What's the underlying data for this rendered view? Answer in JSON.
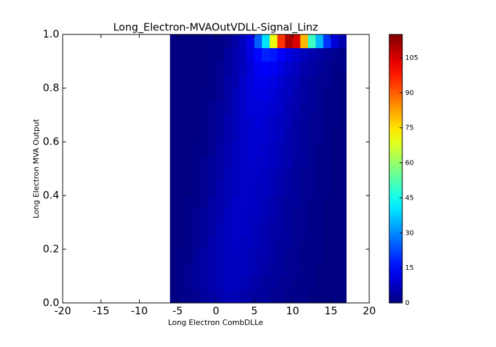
{
  "chart_data": {
    "type": "hist2d",
    "title": "Long_Electron-MVAOutVDLL-Signal_Linz",
    "x_label": "Long Electron CombDLLe",
    "y_label": "Long Electron MVA Output",
    "colormap": "jet",
    "xlim": [
      -20,
      20
    ],
    "xticks": [
      -20,
      -15,
      -10,
      -5,
      0,
      5,
      10,
      15,
      20
    ],
    "ylim": [
      0,
      1
    ],
    "yticks": [
      {
        "value": 0,
        "label": "0.0"
      },
      0.2,
      0.4,
      0.6,
      0.8,
      {
        "value": 1,
        "label": "1.0"
      }
    ],
    "zlim": [
      0,
      115
    ],
    "zticks": [
      0,
      15,
      30,
      45,
      60,
      75,
      90,
      105
    ],
    "xbins": [
      -6,
      -5,
      -4,
      -3,
      -2,
      -1,
      0,
      1,
      2,
      3,
      4,
      5,
      6,
      7,
      8,
      9,
      10,
      11,
      12,
      13,
      14,
      15,
      16,
      17
    ],
    "ybins": [
      0,
      0.05,
      0.1,
      0.15,
      0.2,
      0.25,
      0.3,
      0.35,
      0.4,
      0.45,
      0.5,
      0.55,
      0.6,
      0.65,
      0.7,
      0.75,
      0.8,
      0.85,
      0.9,
      0.95,
      1
    ],
    "values": [
      [
        0,
        1,
        1,
        2,
        3,
        4,
        5,
        6,
        6,
        5,
        4,
        3,
        3,
        2,
        2,
        1,
        1,
        1,
        0,
        0,
        0,
        0,
        0
      ],
      [
        0,
        1,
        2,
        3,
        4,
        5,
        6,
        7,
        7,
        6,
        5,
        4,
        3,
        3,
        2,
        2,
        1,
        1,
        1,
        0,
        0,
        0,
        0
      ],
      [
        0,
        1,
        2,
        3,
        4,
        5,
        6,
        7,
        7,
        7,
        6,
        5,
        4,
        3,
        3,
        2,
        2,
        1,
        1,
        0,
        0,
        0,
        0
      ],
      [
        0,
        1,
        1,
        3,
        4,
        5,
        6,
        7,
        7,
        7,
        6,
        5,
        5,
        4,
        3,
        2,
        2,
        1,
        1,
        1,
        0,
        0,
        0
      ],
      [
        0,
        0,
        1,
        2,
        3,
        5,
        6,
        7,
        8,
        7,
        7,
        6,
        5,
        4,
        3,
        3,
        2,
        1,
        1,
        1,
        0,
        0,
        0
      ],
      [
        0,
        0,
        1,
        2,
        3,
        4,
        6,
        7,
        8,
        8,
        7,
        6,
        5,
        4,
        4,
        3,
        2,
        2,
        1,
        1,
        0,
        0,
        0
      ],
      [
        0,
        0,
        1,
        2,
        3,
        4,
        5,
        7,
        8,
        8,
        7,
        7,
        6,
        5,
        4,
        3,
        2,
        2,
        1,
        1,
        0,
        0,
        0
      ],
      [
        0,
        0,
        1,
        1,
        2,
        4,
        5,
        6,
        8,
        8,
        8,
        7,
        6,
        5,
        4,
        3,
        3,
        2,
        1,
        1,
        0,
        0,
        0
      ],
      [
        0,
        0,
        0,
        1,
        2,
        3,
        5,
        6,
        7,
        8,
        8,
        7,
        7,
        6,
        5,
        4,
        3,
        2,
        2,
        1,
        1,
        0,
        0
      ],
      [
        0,
        0,
        0,
        1,
        2,
        3,
        4,
        6,
        7,
        8,
        8,
        8,
        7,
        6,
        5,
        4,
        3,
        2,
        2,
        1,
        1,
        0,
        0
      ],
      [
        0,
        0,
        0,
        1,
        2,
        3,
        4,
        5,
        7,
        8,
        9,
        8,
        8,
        7,
        6,
        5,
        3,
        3,
        2,
        1,
        1,
        0,
        0
      ],
      [
        0,
        0,
        0,
        1,
        1,
        2,
        4,
        5,
        7,
        8,
        9,
        9,
        8,
        7,
        6,
        5,
        4,
        3,
        2,
        1,
        1,
        0,
        0
      ],
      [
        0,
        0,
        0,
        0,
        1,
        2,
        3,
        5,
        6,
        8,
        9,
        9,
        9,
        8,
        7,
        5,
        4,
        3,
        2,
        2,
        1,
        0,
        0
      ],
      [
        0,
        0,
        0,
        0,
        1,
        2,
        3,
        5,
        6,
        8,
        9,
        10,
        9,
        8,
        7,
        6,
        4,
        3,
        2,
        2,
        1,
        1,
        0
      ],
      [
        0,
        0,
        0,
        0,
        1,
        2,
        3,
        4,
        6,
        8,
        10,
        10,
        10,
        9,
        8,
        6,
        5,
        3,
        3,
        2,
        1,
        1,
        0
      ],
      [
        0,
        0,
        0,
        0,
        1,
        1,
        2,
        4,
        6,
        8,
        10,
        11,
        11,
        10,
        8,
        7,
        5,
        4,
        3,
        2,
        1,
        1,
        0
      ],
      [
        0,
        0,
        0,
        0,
        0,
        1,
        2,
        4,
        5,
        8,
        10,
        12,
        12,
        11,
        9,
        7,
        6,
        4,
        3,
        2,
        2,
        1,
        0
      ],
      [
        0,
        0,
        0,
        0,
        0,
        1,
        2,
        3,
        5,
        7,
        10,
        13,
        14,
        13,
        11,
        9,
        7,
        5,
        4,
        3,
        2,
        1,
        1
      ],
      [
        0,
        0,
        0,
        0,
        0,
        1,
        1,
        3,
        5,
        7,
        11,
        15,
        18,
        17,
        14,
        11,
        9,
        7,
        5,
        4,
        3,
        2,
        1
      ],
      [
        0,
        0,
        0,
        0,
        0,
        1,
        1,
        2,
        4,
        7,
        12,
        25,
        40,
        70,
        95,
        110,
        105,
        80,
        50,
        35,
        20,
        10,
        5
      ]
    ]
  }
}
